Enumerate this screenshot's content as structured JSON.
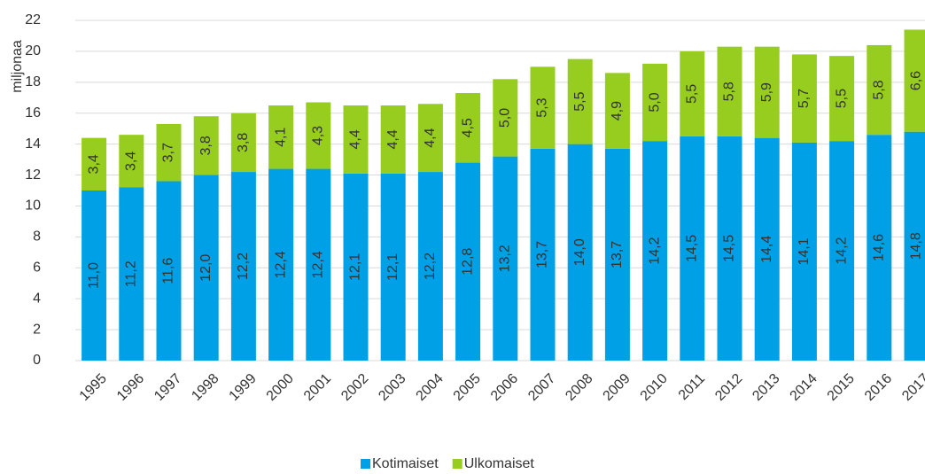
{
  "chart_data": {
    "type": "stacked_bar",
    "y_label": "miljonaa",
    "categories": [
      "1995",
      "1996",
      "1997",
      "1998",
      "1999",
      "2000",
      "2001",
      "2002",
      "2003",
      "2004",
      "2005",
      "2006",
      "2007",
      "2008",
      "2009",
      "2010",
      "2011",
      "2012",
      "2013",
      "2014",
      "2015",
      "2016",
      "2017"
    ],
    "series": [
      {
        "name": "Kotimaiset",
        "color": "#00a0e6",
        "values": [
          11.0,
          11.2,
          11.6,
          12.0,
          12.2,
          12.4,
          12.4,
          12.1,
          12.1,
          12.2,
          12.8,
          13.2,
          13.7,
          14.0,
          13.7,
          14.2,
          14.5,
          14.5,
          14.4,
          14.1,
          14.2,
          14.6,
          14.8
        ],
        "value_labels": [
          "11,0",
          "11,2",
          "11,6",
          "12,0",
          "12,2",
          "12,4",
          "12,4",
          "12,1",
          "12,1",
          "12,2",
          "12,8",
          "13,2",
          "13,7",
          "14,0",
          "13,7",
          "14,2",
          "14,5",
          "14,5",
          "14,4",
          "14,1",
          "14,2",
          "14,6",
          "14,8"
        ]
      },
      {
        "name": "Ulkomaiset",
        "color": "#96cd1e",
        "values": [
          3.4,
          3.4,
          3.7,
          3.8,
          3.8,
          4.1,
          4.3,
          4.4,
          4.4,
          4.4,
          4.5,
          5.0,
          5.3,
          5.5,
          4.9,
          5.0,
          5.5,
          5.8,
          5.9,
          5.7,
          5.5,
          5.8,
          6.6
        ],
        "value_labels": [
          "3,4",
          "3,4",
          "3,7",
          "3,8",
          "3,8",
          "4,1",
          "4,3",
          "4,4",
          "4,4",
          "4,4",
          "4,5",
          "5,0",
          "5,3",
          "5,5",
          "4,9",
          "5,0",
          "5,5",
          "5,8",
          "5,9",
          "5,7",
          "5,5",
          "5,8",
          "6,6"
        ]
      }
    ],
    "ylim": [
      0,
      22
    ],
    "yticks": [
      0,
      2,
      4,
      6,
      8,
      10,
      12,
      14,
      16,
      18,
      20,
      22
    ],
    "grid": true,
    "legend": "bottom"
  }
}
